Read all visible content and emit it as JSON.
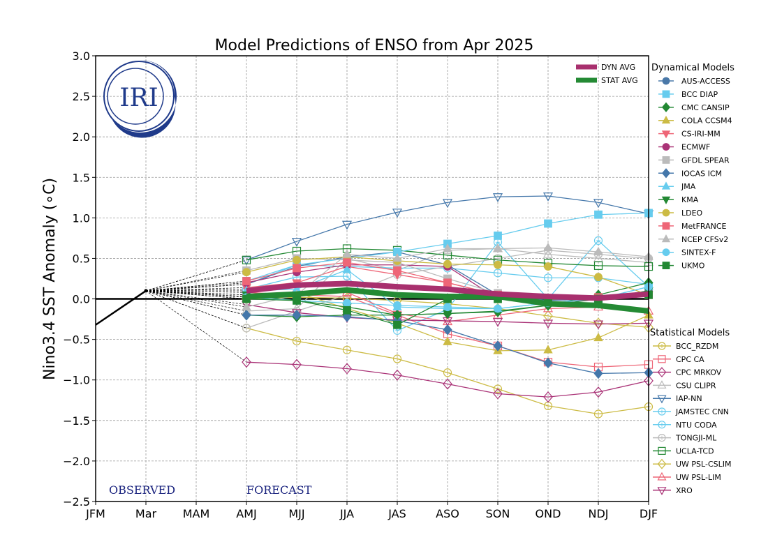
{
  "chart_data": {
    "type": "line",
    "title": "Model Predictions of ENSO from Apr 2025",
    "xlabel": "",
    "ylabel": "Nino3.4 SST Anomaly (∘C)",
    "ylim": [
      -2.5,
      3.0
    ],
    "yticks": [
      "3.0",
      "2.5",
      "2.0",
      "1.5",
      "1.0",
      "0.5",
      "0.0",
      "−0.5",
      "−1.0",
      "−1.5",
      "−2.0",
      "−2.5"
    ],
    "ytick_values": [
      3.0,
      2.5,
      2.0,
      1.5,
      1.0,
      0.5,
      0.0,
      -0.5,
      -1.0,
      -1.5,
      -2.0,
      -2.5
    ],
    "categories": [
      "JFM",
      "Mar",
      "MAM",
      "AMJ",
      "MJJ",
      "JJA",
      "JAS",
      "ASO",
      "SON",
      "OND",
      "NDJ",
      "DJF"
    ],
    "grid": true,
    "annotations": {
      "observed": "OBSERVED",
      "forecast": "FORECAST"
    },
    "logo_text": "IRI",
    "observed": {
      "x": [
        "JFM",
        "Mar"
      ],
      "values": [
        -0.32,
        0.1
      ]
    },
    "forecast_start": {
      "x": "Mar",
      "value": 0.1
    },
    "averages": [
      {
        "name": "DYN AVG",
        "color": "#a8306e",
        "values": [
          0.1,
          0.17,
          0.19,
          0.15,
          0.12,
          0.06,
          0.03,
          0.01,
          0.06
        ]
      },
      {
        "name": "STAT AVG",
        "color": "#248a34",
        "values": [
          0.03,
          0.06,
          0.11,
          0.05,
          0.03,
          0.03,
          -0.06,
          -0.08,
          -0.15
        ]
      }
    ],
    "dynamical_title": "Dynamical Models",
    "statistical_title": "Statistical Models",
    "dynamical": [
      {
        "name": "AUS-ACCESS",
        "color": "#4a78a8",
        "marker": "circle",
        "values": [
          0.18,
          0.4,
          0.52,
          0.58,
          0.42,
          0.05,
          -0.02,
          0.0,
          0.1
        ]
      },
      {
        "name": "BCC DIAP",
        "color": "#66ccee",
        "marker": "square",
        "values": [
          0.22,
          0.42,
          0.5,
          0.58,
          0.68,
          0.78,
          0.93,
          1.04,
          1.06
        ]
      },
      {
        "name": "CMC CANSIP",
        "color": "#228833",
        "marker": "diamond",
        "values": [
          -0.2,
          -0.22,
          -0.2,
          -0.2,
          -0.18,
          -0.16,
          -0.08,
          0.05,
          0.2
        ]
      },
      {
        "name": "COLA CCSM4",
        "color": "#ccbb44",
        "marker": "triangle-up",
        "values": [
          0.05,
          0.08,
          -0.12,
          -0.3,
          -0.53,
          -0.64,
          -0.63,
          -0.48,
          -0.2
        ]
      },
      {
        "name": "CS-IRI-MM",
        "color": "#ee6677",
        "marker": "triangle-down",
        "values": [
          0.14,
          0.2,
          0.4,
          0.3,
          0.2,
          0.05,
          0.0,
          0.0,
          0.05
        ]
      },
      {
        "name": "ECMWF",
        "color": "#aa3377",
        "marker": "circle",
        "values": [
          0.2,
          0.33,
          0.42,
          0.42,
          0.4,
          0.0,
          -0.05,
          0.0,
          0.05
        ]
      },
      {
        "name": "GFDL SPEAR",
        "color": "#bbbbbb",
        "marker": "square",
        "values": [
          0.35,
          0.5,
          0.48,
          0.45,
          0.25,
          0.07,
          0.0,
          0.0,
          0.05
        ]
      },
      {
        "name": "IOCAS ICM",
        "color": "#4477aa",
        "marker": "diamond",
        "values": [
          -0.2,
          -0.2,
          -0.22,
          -0.27,
          -0.38,
          -0.58,
          -0.79,
          -0.92,
          -0.91
        ]
      },
      {
        "name": "JMA",
        "color": "#66ccee",
        "marker": "triangle-up",
        "values": [
          0.1,
          0.12,
          0.36,
          -0.1,
          -0.12,
          -0.12,
          -0.05,
          0.0,
          0.15
        ]
      },
      {
        "name": "KMA",
        "color": "#228833",
        "marker": "triangle-down",
        "values": [
          0.05,
          -0.02,
          -0.1,
          -0.2,
          -0.18,
          -0.15,
          -0.08,
          0.0,
          0.1
        ]
      },
      {
        "name": "LDEO",
        "color": "#ccbb44",
        "marker": "circle",
        "values": [
          0.33,
          0.48,
          0.52,
          0.47,
          0.43,
          0.42,
          0.4,
          0.27,
          0.05
        ]
      },
      {
        "name": "MetFRANCE",
        "color": "#ee6677",
        "marker": "square",
        "values": [
          0.22,
          0.38,
          0.45,
          0.35,
          0.2,
          0.05,
          0.0,
          0.02,
          0.05
        ]
      },
      {
        "name": "NCEP CFSv2",
        "color": "#bbbbbb",
        "marker": "triangle-up",
        "values": [
          -0.1,
          0.05,
          0.55,
          0.5,
          0.62,
          0.62,
          0.63,
          0.58,
          0.52
        ]
      },
      {
        "name": "SINTEX-F",
        "color": "#66ccee",
        "marker": "circle",
        "values": [
          0.02,
          -0.02,
          -0.05,
          -0.08,
          -0.1,
          -0.12,
          -0.05,
          0.0,
          0.15
        ]
      },
      {
        "name": "UKMO",
        "color": "#228833",
        "marker": "square",
        "values": [
          0.0,
          -0.02,
          -0.14,
          -0.32,
          0.0,
          0.0,
          0.0,
          0.0,
          0.05
        ]
      }
    ],
    "statistical": [
      {
        "name": "BCC_RZDM",
        "color": "#ccbb44",
        "marker": "circle-open",
        "values": [
          -0.36,
          -0.52,
          -0.63,
          -0.74,
          -0.91,
          -1.11,
          -1.32,
          -1.42,
          -1.33
        ]
      },
      {
        "name": "CPC CA",
        "color": "#ee6677",
        "marker": "square-open",
        "values": [
          0.08,
          0.05,
          0.03,
          -0.2,
          -0.43,
          -0.58,
          -0.78,
          -0.84,
          -0.81
        ]
      },
      {
        "name": "CPC MRKOV",
        "color": "#aa3377",
        "marker": "diamond-open",
        "values": [
          -0.78,
          -0.81,
          -0.86,
          -0.94,
          -1.05,
          -1.17,
          -1.21,
          -1.15,
          -1.01
        ]
      },
      {
        "name": "CSU CLIPR",
        "color": "#bbbbbb",
        "marker": "triangle-up-open",
        "values": [
          -0.15,
          -0.12,
          0.5,
          0.35,
          0.6,
          0.62,
          0.55,
          0.5,
          0.45
        ]
      },
      {
        "name": "IAP-NN",
        "color": "#4477aa",
        "marker": "triangle-down-open",
        "values": [
          0.48,
          0.71,
          0.92,
          1.07,
          1.19,
          1.26,
          1.27,
          1.19,
          1.05
        ]
      },
      {
        "name": "JAMSTEC CNN",
        "color": "#66ccee",
        "marker": "circle-open",
        "values": [
          0.12,
          0.27,
          0.28,
          -0.39,
          -0.13,
          0.7,
          0.0,
          0.72,
          0.15
        ]
      },
      {
        "name": "NTU CODA",
        "color": "#66ccee",
        "marker": "circle-open",
        "values": [
          0.18,
          0.42,
          0.4,
          0.38,
          0.38,
          0.32,
          0.26,
          0.26,
          0.18
        ]
      },
      {
        "name": "TONGJI-ML",
        "color": "#bbbbbb",
        "marker": "circle-open",
        "values": [
          -0.36,
          -0.15,
          0.05,
          0.3,
          0.4,
          0.5,
          0.6,
          0.55,
          0.5
        ]
      },
      {
        "name": "UCLA-TCD",
        "color": "#228833",
        "marker": "square-open",
        "values": [
          0.48,
          0.59,
          0.62,
          0.6,
          0.54,
          0.48,
          0.44,
          0.41,
          0.4
        ]
      },
      {
        "name": "UW PSL-CSLIM",
        "color": "#ccbb44",
        "marker": "diamond-open",
        "values": [
          0.0,
          0.02,
          0.01,
          -0.02,
          -0.06,
          -0.12,
          -0.21,
          -0.3,
          -0.35
        ]
      },
      {
        "name": "UW PSL-LIM",
        "color": "#ee6677",
        "marker": "triangle-up-open",
        "values": [
          0.03,
          0.06,
          0.08,
          -0.18,
          -0.28,
          -0.2,
          -0.12,
          -0.1,
          -0.15
        ]
      },
      {
        "name": "XRO",
        "color": "#aa3377",
        "marker": "triangle-down-open",
        "values": [
          -0.07,
          -0.17,
          -0.23,
          -0.26,
          -0.27,
          -0.28,
          -0.3,
          -0.31,
          -0.3
        ]
      }
    ]
  }
}
